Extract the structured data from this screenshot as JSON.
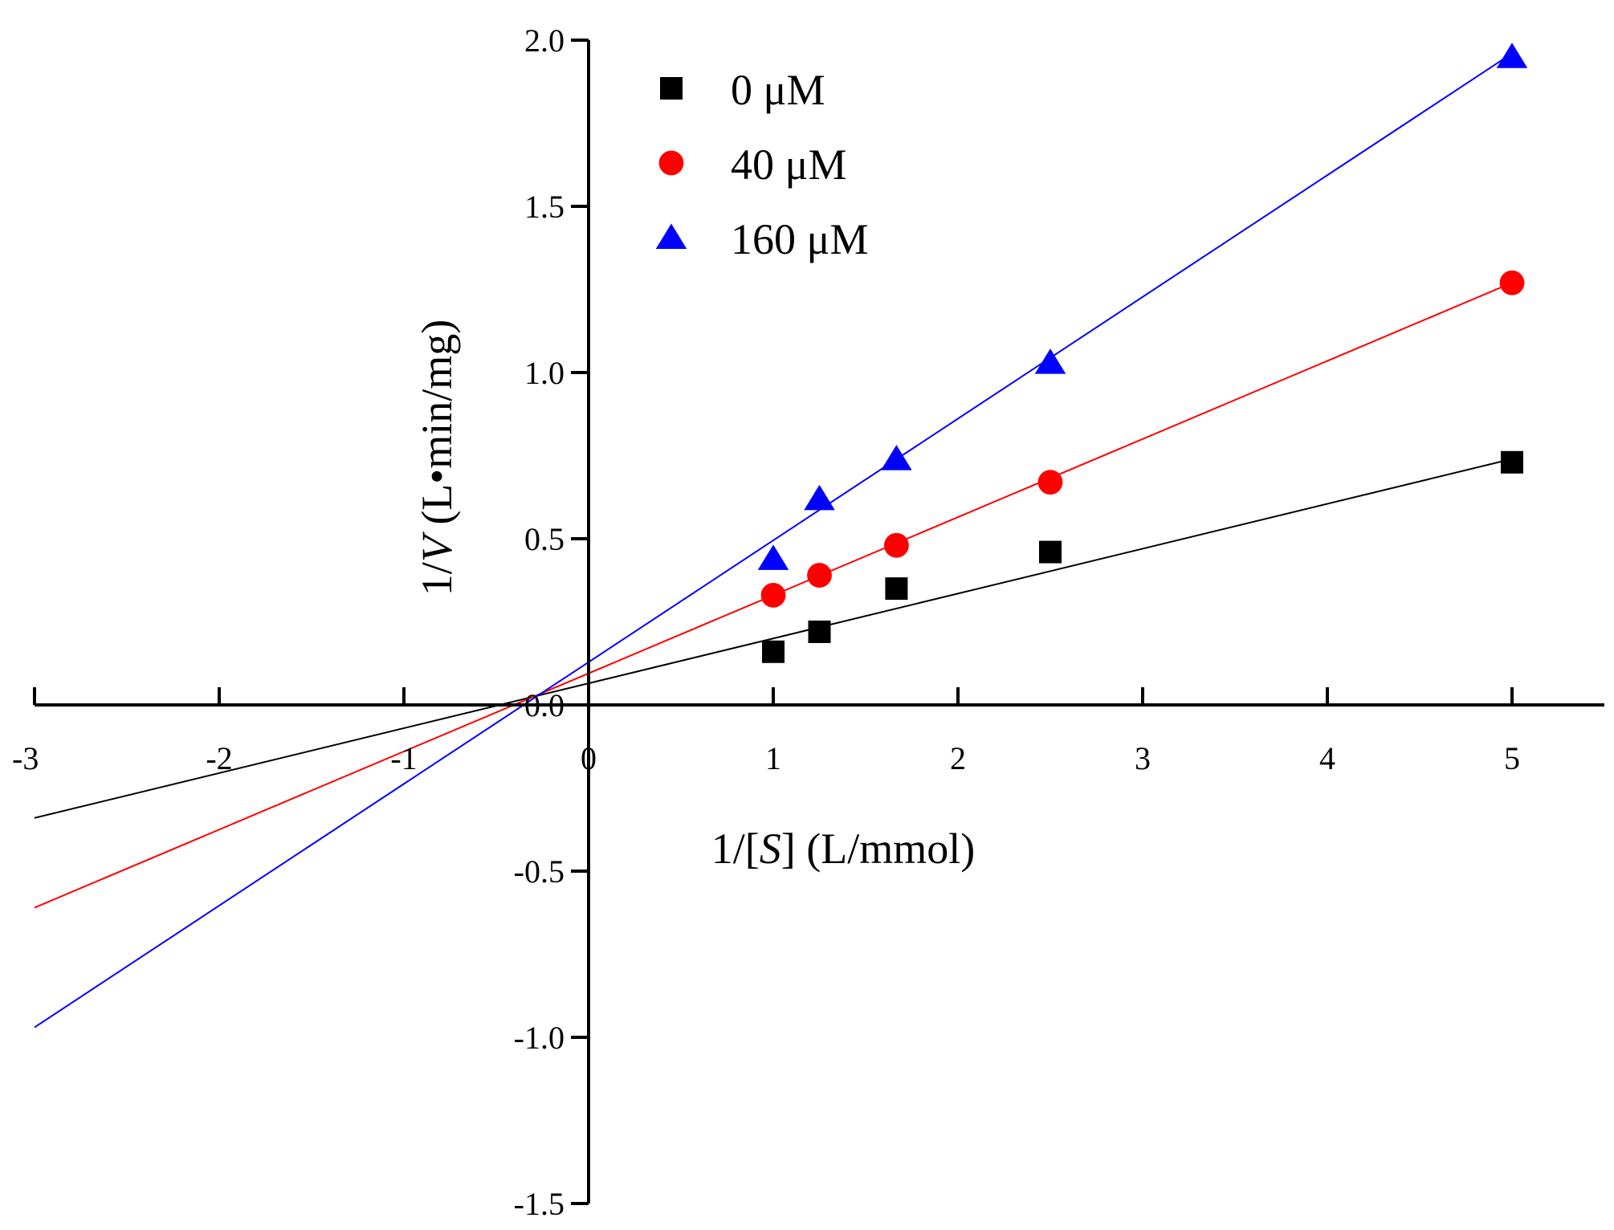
{
  "chart_data": {
    "type": "scatter",
    "xlabel": {
      "prefix": "1/[",
      "italic": "S",
      "suffix": "] (L/mmol)"
    },
    "ylabel": {
      "prefix": "1/",
      "italic": "V",
      "suffix": " (L•min/mg)"
    },
    "xlim": [
      -3,
      5.5
    ],
    "ylim": [
      -1.5,
      2.0
    ],
    "x_ticks": [
      -3,
      -2,
      -1,
      0,
      1,
      2,
      3,
      4,
      5
    ],
    "x_tick_labels": [
      "-3",
      "-2",
      "-1",
      "0",
      "1",
      "2",
      "3",
      "4",
      "5"
    ],
    "y_ticks": [
      -1.5,
      -1.0,
      -0.5,
      0.0,
      0.5,
      1.0,
      1.5,
      2.0
    ],
    "y_tick_labels": [
      "-1.5",
      "-1.0",
      "-0.5",
      "0.0",
      "0.5",
      "1.0",
      "1.5",
      "2.0"
    ],
    "grid": false,
    "legend_position": "top-center",
    "series": [
      {
        "name": "0 μM",
        "marker": "square",
        "color": "#000000",
        "x": [
          1.0,
          1.25,
          1.667,
          2.5,
          5.0
        ],
        "y": [
          0.16,
          0.22,
          0.35,
          0.46,
          0.73
        ],
        "fit_line": {
          "x": [
            -3,
            5
          ],
          "y": [
            -0.34,
            0.74
          ]
        }
      },
      {
        "name": "40 μM",
        "marker": "circle",
        "color": "#ff0000",
        "x": [
          1.0,
          1.25,
          1.667,
          2.5,
          5.0
        ],
        "y": [
          0.33,
          0.39,
          0.48,
          0.67,
          1.27
        ],
        "fit_line": {
          "x": [
            -3,
            5
          ],
          "y": [
            -0.61,
            1.27
          ]
        }
      },
      {
        "name": "160 μM",
        "marker": "triangle",
        "color": "#0000ff",
        "x": [
          1.0,
          1.25,
          1.667,
          2.5,
          5.0
        ],
        "y": [
          0.44,
          0.62,
          0.74,
          1.03,
          1.95
        ],
        "fit_line": {
          "x": [
            -3,
            5
          ],
          "y": [
            -0.97,
            1.96
          ]
        }
      }
    ]
  }
}
